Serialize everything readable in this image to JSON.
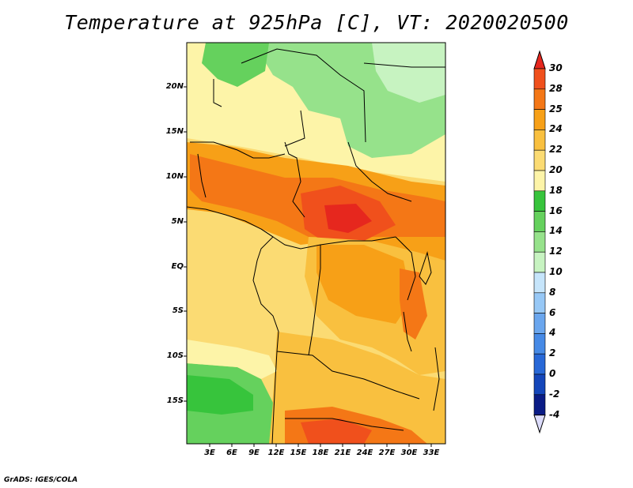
{
  "title": "Temperature at 925hPa [C], VT: 2020020500",
  "credit": "GrADS: IGES/COLA",
  "map": {
    "lat_labels": [
      "20N",
      "15N",
      "10N",
      "5N",
      "EQ",
      "5S",
      "10S",
      "15S"
    ],
    "lon_labels": [
      "3E",
      "6E",
      "9E",
      "12E",
      "15E",
      "18E",
      "21E",
      "24E",
      "27E",
      "30E",
      "33E"
    ]
  },
  "colorbar": {
    "labels": [
      "30",
      "28",
      "25",
      "24",
      "22",
      "20",
      "18",
      "16",
      "14",
      "12",
      "10",
      "8",
      "6",
      "4",
      "2",
      "0",
      "-2",
      "-4"
    ],
    "colors": [
      "#e6271e",
      "#f0501c",
      "#f47716",
      "#f7a017",
      "#f9c03f",
      "#fbdb73",
      "#fdf4a8",
      "#37c43c",
      "#65d15d",
      "#96e28b",
      "#c7f3c1",
      "#c6e5fb",
      "#97c8f6",
      "#6aa6ee",
      "#468ae6",
      "#2868d7",
      "#1446ba",
      "#0a1c86",
      "#dcdcfb"
    ]
  }
}
